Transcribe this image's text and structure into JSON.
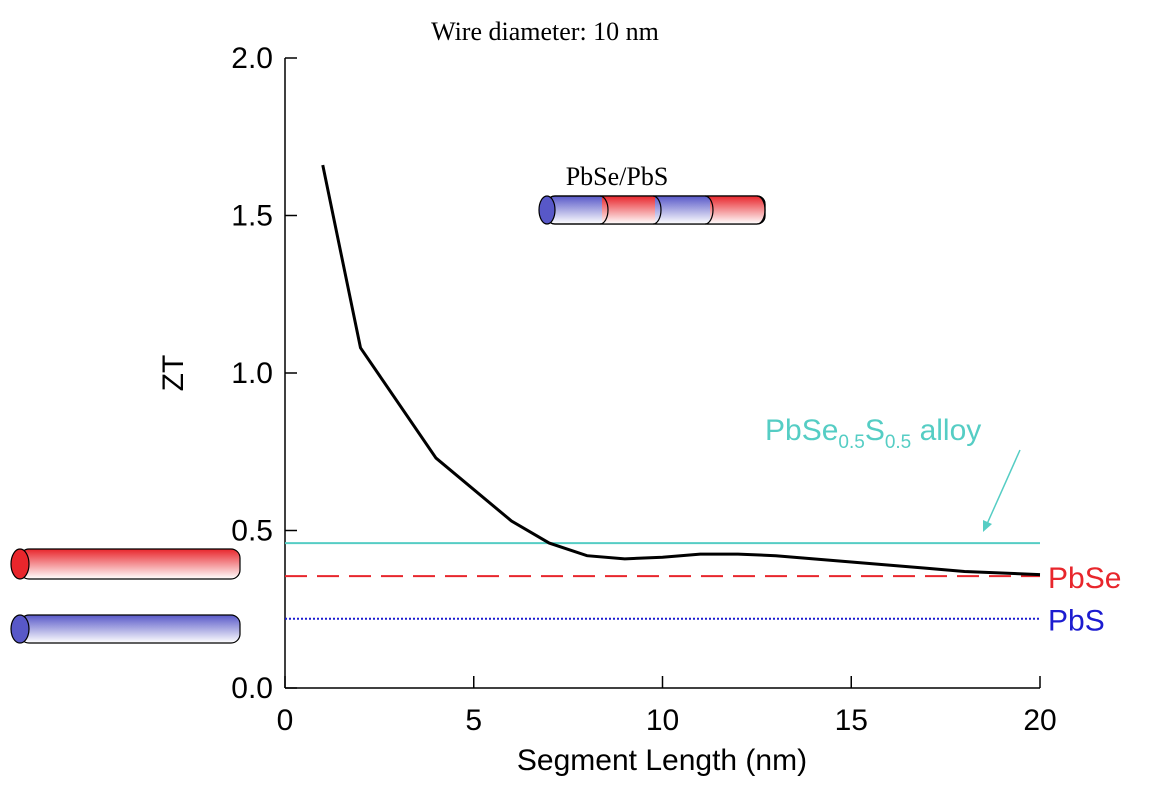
{
  "chart_data": {
    "type": "line",
    "title": "Wire diameter: 10 nm",
    "x_label": "Segment Length (nm)",
    "y_label": "ZT",
    "structure_label": "PbSe/PbS",
    "alloy_label": [
      "PbSe",
      "0.5",
      "S",
      "0.5",
      " alloy"
    ],
    "x": [
      1,
      2,
      4,
      6,
      7,
      8,
      9,
      10,
      11,
      12,
      13,
      14,
      15,
      16,
      17,
      18,
      20
    ],
    "series": [
      {
        "color": "#000000",
        "values": [
          1.66,
          1.08,
          0.73,
          0.53,
          0.46,
          0.42,
          0.41,
          0.415,
          0.425,
          0.425,
          0.42,
          0.41,
          0.4,
          0.39,
          0.38,
          0.37,
          0.36
        ]
      }
    ],
    "reference_lines": [
      {
        "value": 0.46,
        "color": "#55cdc4",
        "style": "solid"
      },
      {
        "name": "PbSe",
        "value": 0.355,
        "color": "#e8262c",
        "style": "dashed"
      },
      {
        "name": "PbS",
        "value": 0.22,
        "color": "#1c1cd0",
        "style": "dotted"
      }
    ],
    "xlim": [
      0,
      20
    ],
    "xticks": [
      0,
      5,
      10,
      15,
      20
    ],
    "ylim": [
      0,
      2
    ],
    "yticks": [
      {
        "value": 0,
        "label": "0.0"
      },
      0.5,
      {
        "value": 1,
        "label": "1.0"
      },
      1.5,
      {
        "value": 2,
        "label": "2.0"
      }
    ]
  }
}
